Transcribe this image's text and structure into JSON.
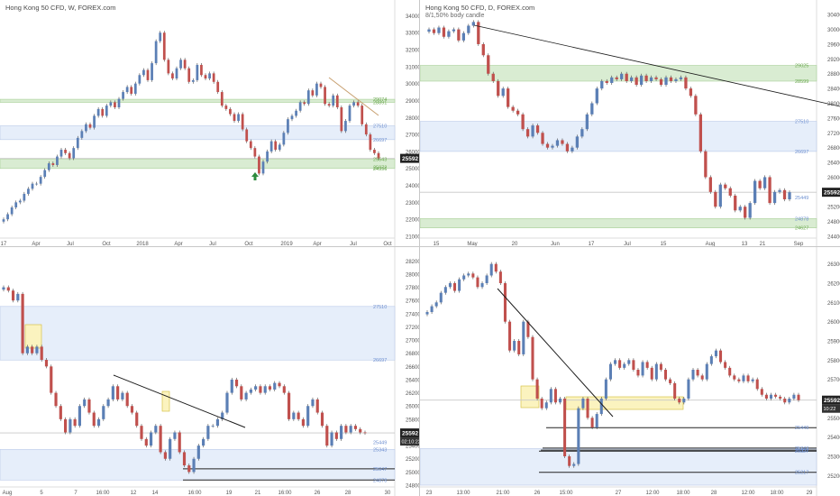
{
  "colors": {
    "up": "#5b7fb5",
    "down": "#c0504d",
    "wick": "#444444",
    "axis_text": "#555555",
    "grid": "#eeeeee",
    "zone_green": "#d9ecd2",
    "zone_blue": "#e6eefa",
    "zone_yellow": "#fbf3bf",
    "trendline": "#1c1c1c",
    "price_line": "#c8c8c8",
    "tag_green": "#6aa84f",
    "tag_blue": "#6d8fd0"
  },
  "panes": [
    {
      "title": "Hong Kong 50 CFD, W, FOREX.com",
      "subtitle": "",
      "price_labels": [
        "34000",
        "33000",
        "32000",
        "31000",
        "30000",
        "29000",
        "28000",
        "27000",
        "26000",
        "25000",
        "24000",
        "23000",
        "22000",
        "21000"
      ],
      "x_labels": [
        "17",
        "Apr",
        "Jul",
        "Oct",
        "2018",
        "Apr",
        "Jul",
        "Oct",
        "2019",
        "Apr",
        "Jul",
        "Oct"
      ],
      "zone_tags": [
        "29074",
        "28891",
        "27510",
        "26697",
        "25543",
        "25072",
        "24996"
      ],
      "last_price": "25592",
      "chart_data": {
        "type": "candlestick",
        "ylim": [
          21000,
          34500
        ],
        "x_tick_labels": [
          "17",
          "Apr",
          "Jul",
          "Oct",
          "2018",
          "Apr",
          "Jul",
          "Oct",
          "2019",
          "Apr",
          "Jul",
          "Oct"
        ],
        "last_price": 25592,
        "closes": [
          22000,
          22300,
          22700,
          23000,
          23100,
          23500,
          23800,
          24100,
          24100,
          24500,
          24900,
          25300,
          25200,
          25700,
          26100,
          25900,
          25600,
          26200,
          26800,
          27200,
          27600,
          27400,
          28100,
          28500,
          28100,
          28700,
          28900,
          28600,
          29100,
          29500,
          29800,
          29400,
          30000,
          30500,
          30800,
          30200,
          31200,
          32500,
          33000,
          31400,
          30600,
          30300,
          30900,
          31400,
          30900,
          30100,
          30200,
          31100,
          30500,
          30300,
          30600,
          30100,
          29500,
          28700,
          28500,
          28200,
          27800,
          28200,
          27300,
          26600,
          26200,
          25700,
          24700,
          25400,
          26000,
          26600,
          26100,
          26400,
          27100,
          27900,
          28100,
          28400,
          28900,
          28800,
          29600,
          29300,
          30000,
          29800,
          28800,
          28700,
          29300,
          28600,
          27200,
          27800,
          28700,
          28900,
          28700,
          27600,
          27000,
          26100,
          25900,
          25592
        ]
      }
    },
    {
      "title": "Hong Kong 50 CFD, D, FOREX.com",
      "subtitle": "8/1,50% body candle",
      "price_labels": [
        "30400",
        "30000",
        "29600",
        "29200",
        "28800",
        "28400",
        "28000",
        "27600",
        "27200",
        "26800",
        "26400",
        "26000",
        "25600",
        "25200",
        "24800",
        "24400"
      ],
      "x_labels": [
        "15",
        "May",
        "20",
        "Jun",
        "17",
        "Jul",
        "15",
        "Aug",
        "13",
        "21",
        "Sep"
      ],
      "zone_tags": [
        "29025",
        "28599",
        "27510",
        "26697",
        "25449",
        "24878",
        "24627"
      ],
      "last_price": "25592",
      "chart_data": {
        "type": "candlestick",
        "ylim": [
          24400,
          30600
        ],
        "x_tick_labels": [
          "15",
          "May",
          "20",
          "Jun",
          "17",
          "Jul",
          "15",
          "Aug",
          "13",
          "21",
          "Sep"
        ],
        "last_price": 25592,
        "closes": [
          30000,
          29900,
          30050,
          29800,
          29950,
          30000,
          29700,
          29900,
          30100,
          30200,
          29600,
          29300,
          28800,
          28600,
          28200,
          28400,
          27900,
          27800,
          27700,
          27300,
          27100,
          27400,
          27200,
          26900,
          26800,
          26850,
          27000,
          26900,
          26700,
          26800,
          27100,
          27300,
          27700,
          28000,
          28400,
          28600,
          28550,
          28700,
          28650,
          28800,
          28600,
          28700,
          28500,
          28750,
          28600,
          28700,
          28650,
          28500,
          28700,
          28600,
          28650,
          28700,
          28400,
          28200,
          27700,
          26700,
          26000,
          25600,
          25200,
          25800,
          25700,
          25500,
          25100,
          25200,
          24900,
          25300,
          25900,
          25700,
          26000,
          25300,
          25600,
          25650,
          25400,
          25592
        ]
      }
    },
    {
      "title": "",
      "subtitle": "",
      "price_labels": [
        "28200",
        "28000",
        "27800",
        "27600",
        "27400",
        "27200",
        "27000",
        "26800",
        "26600",
        "26400",
        "26200",
        "26000",
        "25800",
        "25600",
        "25400",
        "25200",
        "25000",
        "24800"
      ],
      "x_labels": [
        "Aug",
        "5",
        "7",
        "16:00",
        "12",
        "14",
        "16:00",
        "19",
        "21",
        "16:00",
        "26",
        "28",
        "30"
      ],
      "zone_tags": [
        "27510",
        "26697",
        "25449",
        "25343",
        "25047",
        "24878"
      ],
      "last_price": "25592",
      "countdown": "02:10:22",
      "chart_data": {
        "type": "candlestick",
        "ylim": [
          24800,
          28300
        ],
        "x_tick_labels": [
          "Aug",
          "5",
          "7",
          "16:00",
          "12",
          "14",
          "16:00",
          "19",
          "21",
          "16:00",
          "26",
          "28",
          "30"
        ],
        "last_price": 25592,
        "closes": [
          27800,
          27750,
          27600,
          27700,
          26800,
          26900,
          26800,
          26900,
          26700,
          26600,
          26200,
          26000,
          25800,
          25600,
          25800,
          25700,
          26000,
          26100,
          25900,
          25700,
          25800,
          26000,
          26100,
          26300,
          26100,
          26200,
          26000,
          25900,
          25700,
          25500,
          25400,
          25600,
          25700,
          25300,
          25200,
          25500,
          25600,
          25300,
          25100,
          25000,
          25200,
          25400,
          25500,
          25700,
          25700,
          25800,
          25900,
          26200,
          26400,
          26300,
          26100,
          26200,
          26250,
          26300,
          26200,
          26300,
          26250,
          26350,
          26300,
          26200,
          25800,
          25900,
          25800,
          25700,
          26000,
          26100,
          25900,
          25700,
          25400,
          25600,
          25500,
          25700,
          25600,
          25700,
          25650,
          25600,
          25592
        ]
      }
    },
    {
      "title": "",
      "subtitle": "",
      "price_labels": [
        "26300",
        "26200",
        "26100",
        "26000",
        "25900",
        "25800",
        "25700",
        "25600",
        "25500",
        "25400",
        "25300",
        "25200"
      ],
      "x_labels": [
        "23",
        "13:00",
        "21:00",
        "26",
        "15:00",
        "27",
        "12:00",
        "18:00",
        "28",
        "12:00",
        "18:00",
        "29"
      ],
      "zone_tags": [
        "25449",
        "25343",
        "25332",
        "25327",
        "25217"
      ],
      "last_price": "25592",
      "countdown": "10:22",
      "chart_data": {
        "type": "candlestick",
        "ylim": [
          25150,
          26350
        ],
        "x_tick_labels": [
          "23",
          "13:00",
          "21:00",
          "26",
          "15:00",
          "27",
          "12:00",
          "18:00",
          "28",
          "12:00",
          "18:00",
          "29"
        ],
        "last_price": 25592,
        "closes": [
          26050,
          26080,
          26100,
          26150,
          26180,
          26200,
          26160,
          26220,
          26240,
          26250,
          26230,
          26180,
          26200,
          26240,
          26300,
          26260,
          26200,
          26000,
          25850,
          25900,
          25830,
          26000,
          25920,
          25700,
          25600,
          25550,
          25580,
          25650,
          25580,
          25600,
          25300,
          25250,
          25260,
          25550,
          25600,
          25500,
          25450,
          25520,
          25600,
          25700,
          25780,
          25800,
          25760,
          25780,
          25800,
          25750,
          25720,
          25790,
          25760,
          25700,
          25780,
          25750,
          25700,
          25680,
          25600,
          25580,
          25600,
          25700,
          25750,
          25720,
          25700,
          25780,
          25820,
          25850,
          25790,
          25760,
          25720,
          25700,
          25690,
          25720,
          25690,
          25700,
          25650,
          25620,
          25600,
          25620,
          25610,
          25600,
          25580,
          25600,
          25620,
          25592
        ]
      }
    }
  ]
}
